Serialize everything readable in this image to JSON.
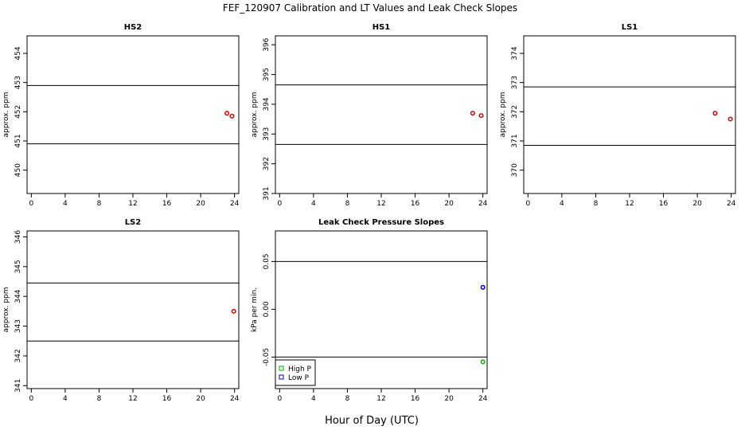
{
  "page": {
    "title": "FEF_120907  Calibration and LT Values and Leak Check Slopes",
    "xlabel": "Hour of Day (UTC)"
  },
  "chart_data": [
    {
      "type": "scatter",
      "title": "HS2",
      "ylabel": "approx. ppm",
      "xlim": [
        -0.5,
        24.5
      ],
      "ylim": [
        449.2,
        454.6
      ],
      "xticks": [
        0,
        4,
        8,
        12,
        16,
        20,
        24
      ],
      "yticks": [
        450,
        451,
        452,
        453,
        454
      ],
      "hlines": [
        450.9,
        452.9
      ],
      "series": [
        {
          "color": "#e00000",
          "marker": "circle",
          "x": [
            23.1,
            23.7
          ],
          "y": [
            451.95,
            451.85
          ]
        }
      ]
    },
    {
      "type": "scatter",
      "title": "HS1",
      "ylabel": "approx. ppm",
      "xlim": [
        -0.5,
        24.5
      ],
      "ylim": [
        391,
        396.3
      ],
      "xticks": [
        0,
        4,
        8,
        12,
        16,
        20,
        24
      ],
      "yticks": [
        391,
        392,
        393,
        394,
        395,
        396
      ],
      "hlines": [
        392.65,
        394.65
      ],
      "series": [
        {
          "color": "#e00000",
          "marker": "circle",
          "x": [
            22.8,
            23.8
          ],
          "y": [
            393.7,
            393.62
          ]
        }
      ]
    },
    {
      "type": "scatter",
      "title": "LS1",
      "ylabel": "approx. ppm",
      "xlim": [
        -0.5,
        24.5
      ],
      "ylim": [
        369.2,
        374.6
      ],
      "xticks": [
        0,
        4,
        8,
        12,
        16,
        20,
        24
      ],
      "yticks": [
        370,
        371,
        372,
        373,
        374
      ],
      "hlines": [
        370.85,
        372.85
      ],
      "series": [
        {
          "color": "#e00000",
          "marker": "circle",
          "x": [
            22.1,
            23.9
          ],
          "y": [
            371.95,
            371.75
          ]
        }
      ]
    },
    {
      "type": "scatter",
      "title": "LS2",
      "ylabel": "approx. ppm",
      "xlim": [
        -0.5,
        24.5
      ],
      "ylim": [
        340.9,
        346.2
      ],
      "xticks": [
        0,
        4,
        8,
        12,
        16,
        20,
        24
      ],
      "yticks": [
        341,
        342,
        343,
        344,
        345,
        346
      ],
      "hlines": [
        342.5,
        344.45
      ],
      "series": [
        {
          "color": "#e00000",
          "marker": "circle",
          "x": [
            23.9
          ],
          "y": [
            343.5
          ]
        }
      ]
    },
    {
      "type": "scatter",
      "title": "Leak Check Pressure Slopes",
      "ylabel": "kPa per min.",
      "xlim": [
        -0.5,
        24.5
      ],
      "ylim": [
        -0.083,
        0.082
      ],
      "xticks": [
        0,
        4,
        8,
        12,
        16,
        20,
        24
      ],
      "yticks": [
        -0.05,
        0.0,
        0.05
      ],
      "ytick_labels": [
        "-0.05",
        "0.00",
        "0.05"
      ],
      "hlines": [
        -0.05,
        0.05
      ],
      "legend": {
        "position": "bottom-left",
        "entries": [
          "High P",
          "Low P"
        ]
      },
      "series": [
        {
          "name": "High P",
          "color": "#00b000",
          "marker": "circle",
          "x": [
            24
          ],
          "y": [
            -0.055
          ]
        },
        {
          "name": "Low P",
          "color": "#0000d0",
          "marker": "circle",
          "x": [
            24
          ],
          "y": [
            0.023
          ]
        }
      ]
    }
  ]
}
